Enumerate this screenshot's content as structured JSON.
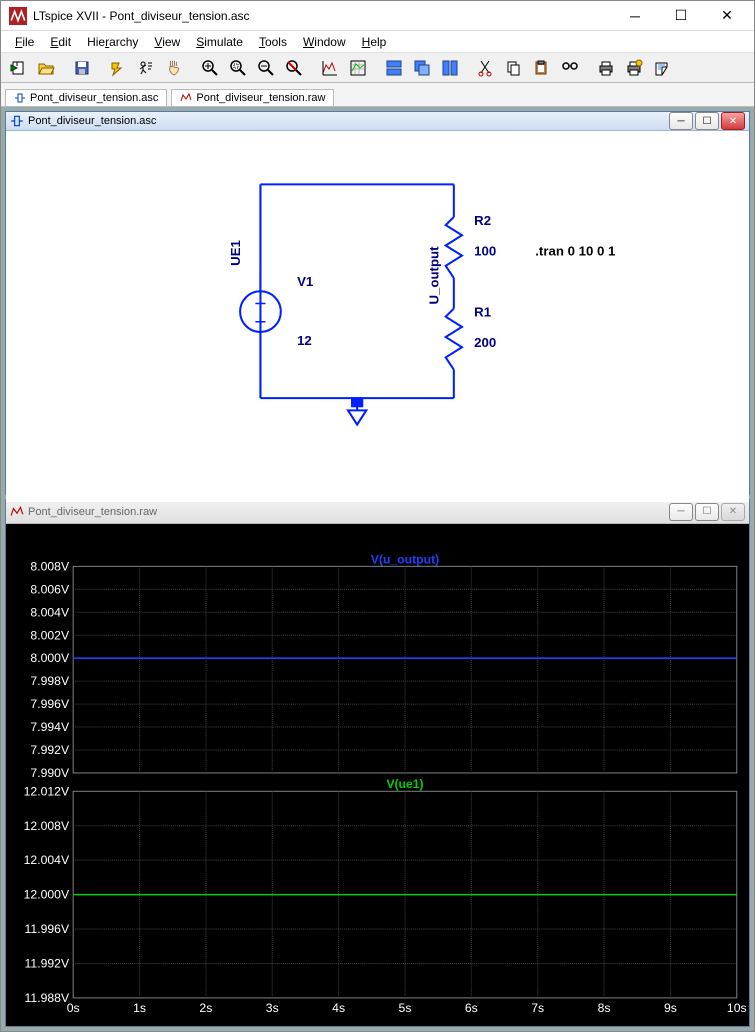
{
  "window": {
    "title": "LTspice XVII - Pont_diviseur_tension.asc",
    "app_icon_bg": "#b02020"
  },
  "menu": {
    "items": [
      "File",
      "Edit",
      "Hierarchy",
      "View",
      "Simulate",
      "Tools",
      "Window",
      "Help"
    ],
    "underline_index": [
      0,
      0,
      0,
      0,
      0,
      0,
      0,
      0
    ]
  },
  "toolbar_icons": [
    "new",
    "open",
    "save",
    "sep",
    "hammer",
    "run",
    "pan",
    "sep",
    "zoom-in",
    "zoom-drag",
    "zoom-out",
    "zoom-fit",
    "sep",
    "plot-a",
    "plot-b",
    "sep",
    "tile-h",
    "cascade",
    "tile-v",
    "sep",
    "cut",
    "copy",
    "paste",
    "find",
    "sep",
    "print",
    "print-a",
    "print-b"
  ],
  "tabs": [
    {
      "label": "Pont_diviseur_tension.asc",
      "icon": "schematic"
    },
    {
      "label": "Pont_diviseur_tension.raw",
      "icon": "waveform"
    }
  ],
  "schematic": {
    "title": "Pont_diviseur_tension.asc",
    "wire_color": "#0020ff",
    "text_color": "#000080",
    "voltage_source": {
      "name": "V1",
      "value": "12",
      "net": "UE1"
    },
    "r2": {
      "name": "R2",
      "value": "100"
    },
    "r1": {
      "name": "R1",
      "value": "200"
    },
    "output_net": "U_output",
    "directive": ".tran 0 10 0 1"
  },
  "plot": {
    "title": "Pont_diviseur_tension.raw",
    "background": "#000000",
    "grid_color": "#404040",
    "text_color": "#ffffff",
    "x": {
      "min": 0,
      "max": 10,
      "step": 1,
      "unit": "s",
      "ticks": [
        "0s",
        "1s",
        "2s",
        "3s",
        "4s",
        "5s",
        "6s",
        "7s",
        "8s",
        "9s",
        "10s"
      ]
    },
    "panes": [
      {
        "title": "V(u_output)",
        "title_color": "#2040ff",
        "trace_color": "#2040ff",
        "ymin": 7.99,
        "ymax": 8.008,
        "ylabels": [
          "8.008V",
          "8.006V",
          "8.004V",
          "8.002V",
          "8.000V",
          "7.998V",
          "7.996V",
          "7.994V",
          "7.992V",
          "7.990V"
        ],
        "value": 8.0
      },
      {
        "title": "V(ue1)",
        "title_color": "#00d000",
        "trace_color": "#00d000",
        "ymin": 11.988,
        "ymax": 12.012,
        "ylabels": [
          "12.012V",
          "12.008V",
          "12.004V",
          "12.000V",
          "11.996V",
          "11.992V",
          "11.988V"
        ],
        "value": 12.0
      }
    ]
  }
}
